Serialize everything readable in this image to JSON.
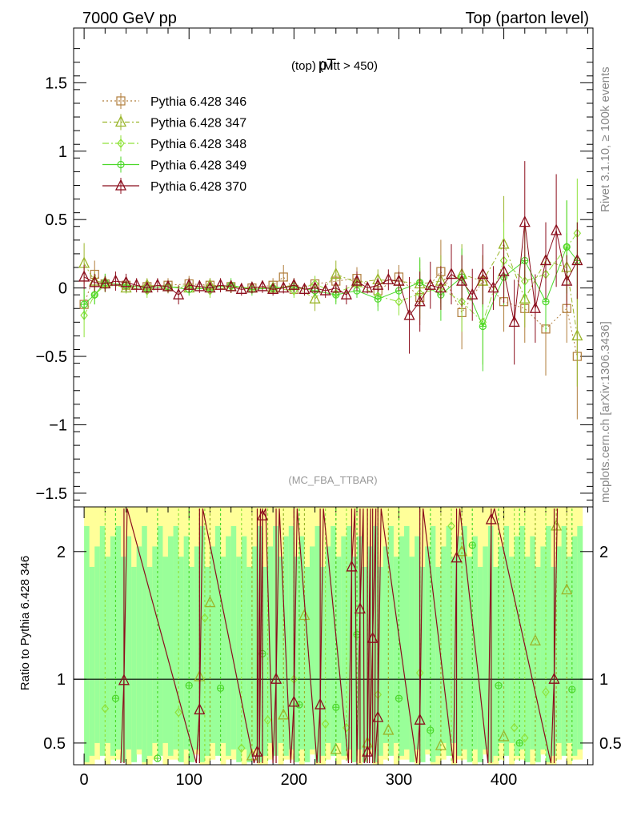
{
  "header": {
    "left": "7000 GeV pp",
    "right": "Top (parton level)"
  },
  "side_labels": {
    "rivet": "Rivet 3.1.10, ≥ 100k events",
    "mcplots": "mcplots.cern.ch [arXiv:1306.3436]"
  },
  "chart_data": [
    {
      "type": "scatter",
      "title": "pT",
      "title_note": "(top) (Mtt > 450)",
      "watermark": "(MC_FBA_TTBAR)",
      "xlim": [
        -10,
        485
      ],
      "ylim": [
        -1.6,
        1.9
      ],
      "yticks": [
        -1.5,
        -1,
        -0.5,
        0,
        0.5,
        1,
        1.5
      ],
      "ytick_labels": [
        "−1.5",
        "−1",
        "−0.5",
        "0",
        "0.5",
        "1",
        "1.5"
      ],
      "legend_position": "top-left",
      "series": [
        {
          "name": "Pythia 6.428 346",
          "color": "#b07d3b",
          "marker": "square",
          "dash": "2,3",
          "x": [
            0,
            10,
            20,
            40,
            60,
            80,
            100,
            120,
            140,
            160,
            180,
            190,
            200,
            220,
            240,
            260,
            280,
            300,
            320,
            340,
            360,
            380,
            400,
            420,
            440,
            460,
            470
          ],
          "y": [
            -0.12,
            0.1,
            0.03,
            0.02,
            0.01,
            0.02,
            0.03,
            0.02,
            0.01,
            0.0,
            0.02,
            0.08,
            -0.01,
            0.03,
            0.05,
            0.07,
            -0.02,
            0.08,
            -0.07,
            0.12,
            -0.18,
            0.05,
            -0.1,
            -0.15,
            -0.3,
            -0.15,
            -0.5
          ]
        },
        {
          "name": "Pythia 6.428 347",
          "color": "#9ab52a",
          "marker": "triangle",
          "dash": "6,3,2,3",
          "x": [
            0,
            10,
            20,
            40,
            60,
            80,
            100,
            120,
            140,
            160,
            180,
            200,
            220,
            240,
            260,
            280,
            300,
            320,
            340,
            360,
            380,
            400,
            420,
            440,
            460,
            470
          ],
          "y": [
            0.18,
            0.05,
            0.04,
            0.0,
            0.02,
            0.01,
            0.0,
            0.02,
            0.01,
            0.0,
            0.0,
            0.02,
            -0.08,
            0.1,
            0.04,
            0.06,
            0.05,
            0.03,
            0.05,
            0.1,
            0.05,
            0.32,
            -0.08,
            0.2,
            0.15,
            -0.35
          ]
        },
        {
          "name": "Pythia 6.428 348",
          "color": "#8fe23a",
          "marker": "diamond",
          "dash": "8,3,2,3",
          "x": [
            0,
            10,
            20,
            40,
            60,
            80,
            100,
            120,
            140,
            160,
            180,
            200,
            220,
            240,
            260,
            280,
            300,
            320,
            340,
            360,
            380,
            400,
            420,
            440,
            460,
            470
          ],
          "y": [
            -0.2,
            -0.05,
            0.02,
            0.01,
            -0.02,
            0.0,
            0.02,
            -0.02,
            0.01,
            0.0,
            0.0,
            -0.02,
            0.03,
            -0.04,
            0.03,
            -0.06,
            -0.1,
            -0.04,
            0.0,
            -0.1,
            -0.25,
            0.2,
            0.05,
            0.1,
            0.3,
            0.4
          ]
        },
        {
          "name": "Pythia 6.428 349",
          "color": "#4cd82a",
          "marker": "circleplus",
          "dash": "",
          "x": [
            0,
            10,
            20,
            40,
            60,
            80,
            100,
            120,
            140,
            160,
            180,
            200,
            220,
            240,
            260,
            280,
            300,
            320,
            340,
            360,
            380,
            400,
            420,
            440,
            460,
            470
          ],
          "y": [
            -0.12,
            -0.05,
            0.04,
            0.02,
            0.0,
            0.01,
            -0.01,
            0.0,
            0.02,
            -0.01,
            0.0,
            0.01,
            -0.02,
            -0.05,
            -0.02,
            -0.08,
            -0.02,
            0.04,
            -0.05,
            0.08,
            -0.28,
            0.08,
            0.2,
            -0.1,
            0.3,
            0.2
          ]
        },
        {
          "name": "Pythia 6.428 370",
          "color": "#8b0d1c",
          "marker": "triangle",
          "dash": "",
          "x": [
            0,
            10,
            20,
            30,
            40,
            50,
            60,
            70,
            80,
            90,
            100,
            110,
            120,
            130,
            140,
            150,
            160,
            170,
            180,
            190,
            200,
            210,
            220,
            230,
            240,
            250,
            260,
            270,
            280,
            290,
            300,
            310,
            320,
            330,
            340,
            350,
            360,
            370,
            380,
            390,
            400,
            410,
            420,
            430,
            440,
            450,
            460,
            470
          ],
          "y": [
            0.08,
            0.04,
            0.03,
            0.05,
            0.04,
            0.02,
            0.0,
            0.02,
            0.01,
            -0.05,
            0.02,
            0.01,
            0.0,
            0.02,
            0.01,
            -0.01,
            0.0,
            0.01,
            -0.01,
            0.0,
            0.02,
            -0.01,
            0.0,
            -0.02,
            0.0,
            -0.05,
            0.05,
            0.0,
            0.02,
            0.06,
            0.05,
            -0.2,
            -0.1,
            0.02,
            0.0,
            0.1,
            0.05,
            -0.05,
            0.1,
            0.0,
            0.12,
            -0.25,
            0.48,
            -0.15,
            0.2,
            0.42,
            0.05,
            0.2
          ]
        }
      ]
    },
    {
      "type": "scatter",
      "ylabel": "Ratio to Pythia 6.428 346",
      "xlim": [
        -10,
        485
      ],
      "ylim": [
        0.33,
        2.35
      ],
      "yticks": [
        0.5,
        1,
        2
      ],
      "ytick_labels": [
        "0.5",
        "1",
        "2"
      ],
      "xticks": [
        0,
        100,
        200,
        300,
        400
      ],
      "xtick_labels": [
        "0",
        "100",
        "200",
        "300",
        "400"
      ],
      "reference_line": 1,
      "bands": {
        "outer_color": "#ffff99",
        "inner_color": "#99ff99"
      },
      "series": [
        {
          "name": "Pythia 6.428 347",
          "color": "#9ab52a",
          "marker": "triangle",
          "x": [
            110,
            120,
            160,
            190,
            210,
            240,
            270,
            290,
            340,
            360,
            400,
            430,
            450,
            460
          ],
          "y": [
            1.02,
            1.6,
            0.4,
            0.72,
            1.5,
            0.45,
            0.5,
            0.6,
            0.48,
            2.0,
            0.55,
            1.3,
            2.2,
            1.7
          ]
        },
        {
          "name": "Pythia 6.428 348",
          "color": "#8fe23a",
          "marker": "diamond",
          "x": [
            20,
            90,
            115,
            150,
            175,
            200,
            230,
            250,
            280,
            320,
            350,
            410,
            420,
            440
          ],
          "y": [
            0.77,
            0.74,
            1.48,
            0.46,
            0.68,
            1.0,
            0.65,
            0.62,
            0.88,
            1.05,
            2.2,
            0.62,
            0.54,
            0.9
          ]
        },
        {
          "name": "Pythia 6.428 349",
          "color": "#4cd82a",
          "marker": "circleplus",
          "x": [
            30,
            70,
            100,
            130,
            170,
            205,
            240,
            260,
            300,
            330,
            370,
            395,
            415,
            465
          ],
          "y": [
            0.85,
            0.38,
            0.95,
            0.93,
            1.2,
            0.8,
            0.78,
            1.35,
            0.85,
            0.6,
            2.05,
            0.95,
            0.5,
            0.92
          ]
        },
        {
          "name": "Pythia 6.428 370",
          "color": "#8b0d1c",
          "marker": "triangle",
          "x": [
            38,
            110,
            165,
            170,
            183,
            200,
            225,
            255,
            263,
            270,
            275,
            280,
            320,
            355,
            388,
            448
          ],
          "y": [
            0.99,
            0.76,
            0.43,
            2.28,
            1.0,
            0.82,
            0.8,
            1.88,
            1.55,
            0.43,
            1.32,
            0.7,
            0.68,
            1.95,
            2.25,
            1.0
          ]
        }
      ]
    }
  ]
}
